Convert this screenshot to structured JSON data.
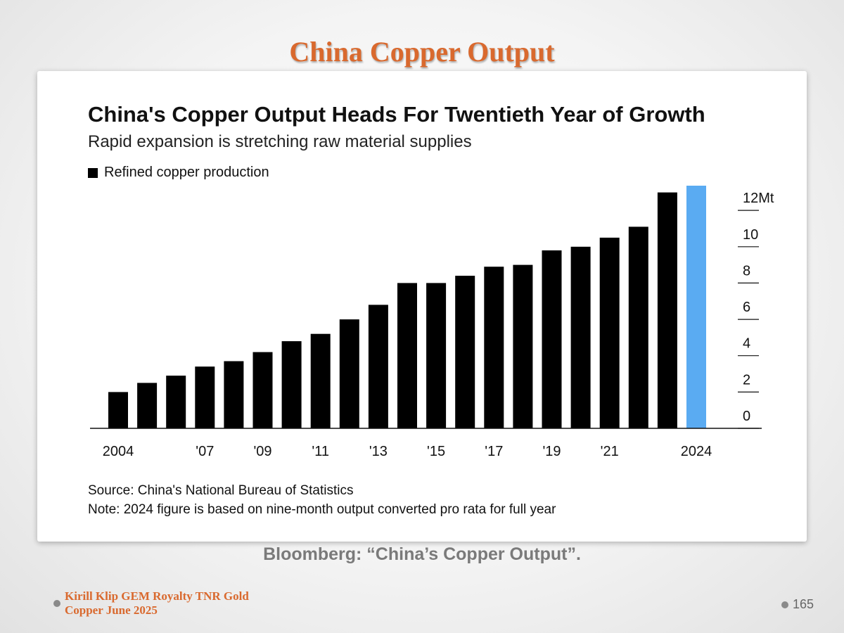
{
  "slide": {
    "title": "China Copper Output",
    "caption": "Bloomberg: “China’s Copper Output”.",
    "footer_line1": "Kirill Klip GEM Royalty TNR Gold",
    "footer_line2": "Copper June 2025",
    "page_number": "165"
  },
  "chart_data": {
    "type": "bar",
    "title": "China's Copper Output Heads For Twentieth Year of Growth",
    "subtitle": "Rapid expansion is stretching raw material supplies",
    "legend": [
      "Refined copper production"
    ],
    "legend_placement": "top-left",
    "source": "Source: China's National Bureau of Statistics",
    "note": "Note: 2024 figure is based on nine-month output converted pro rata for full year",
    "categories": [
      "2004",
      "2005",
      "2006",
      "2007",
      "2008",
      "2009",
      "2010",
      "2011",
      "2012",
      "2013",
      "2014",
      "2015",
      "2016",
      "2017",
      "2018",
      "2019",
      "2020",
      "2021",
      "2022",
      "2023",
      "2024"
    ],
    "x_tick_labels": [
      "2004",
      "",
      "",
      "'07",
      "",
      "'09",
      "",
      "'11",
      "",
      "'13",
      "",
      "'15",
      "",
      "'17",
      "",
      "'19",
      "",
      "'21",
      "",
      "",
      "2024"
    ],
    "series": [
      {
        "name": "Refined copper production",
        "values": [
          2.0,
          2.5,
          2.9,
          3.4,
          3.7,
          4.2,
          4.8,
          5.2,
          6.0,
          6.8,
          8.0,
          8.0,
          8.4,
          8.9,
          9.0,
          9.8,
          10.0,
          10.5,
          11.1,
          12.99,
          13.36
        ],
        "color": "#000000"
      }
    ],
    "highlight": {
      "category": "2024",
      "color": "#5aabf2"
    },
    "y_ticks": [
      "0",
      "2",
      "4",
      "6",
      "8",
      "10",
      "12Mt"
    ],
    "y_tick_values": [
      0,
      2,
      4,
      6,
      8,
      10,
      12
    ],
    "ylim": [
      0,
      13.4
    ],
    "y_axis_side": "right",
    "grid": false,
    "xlabel": "",
    "ylabel": ""
  }
}
